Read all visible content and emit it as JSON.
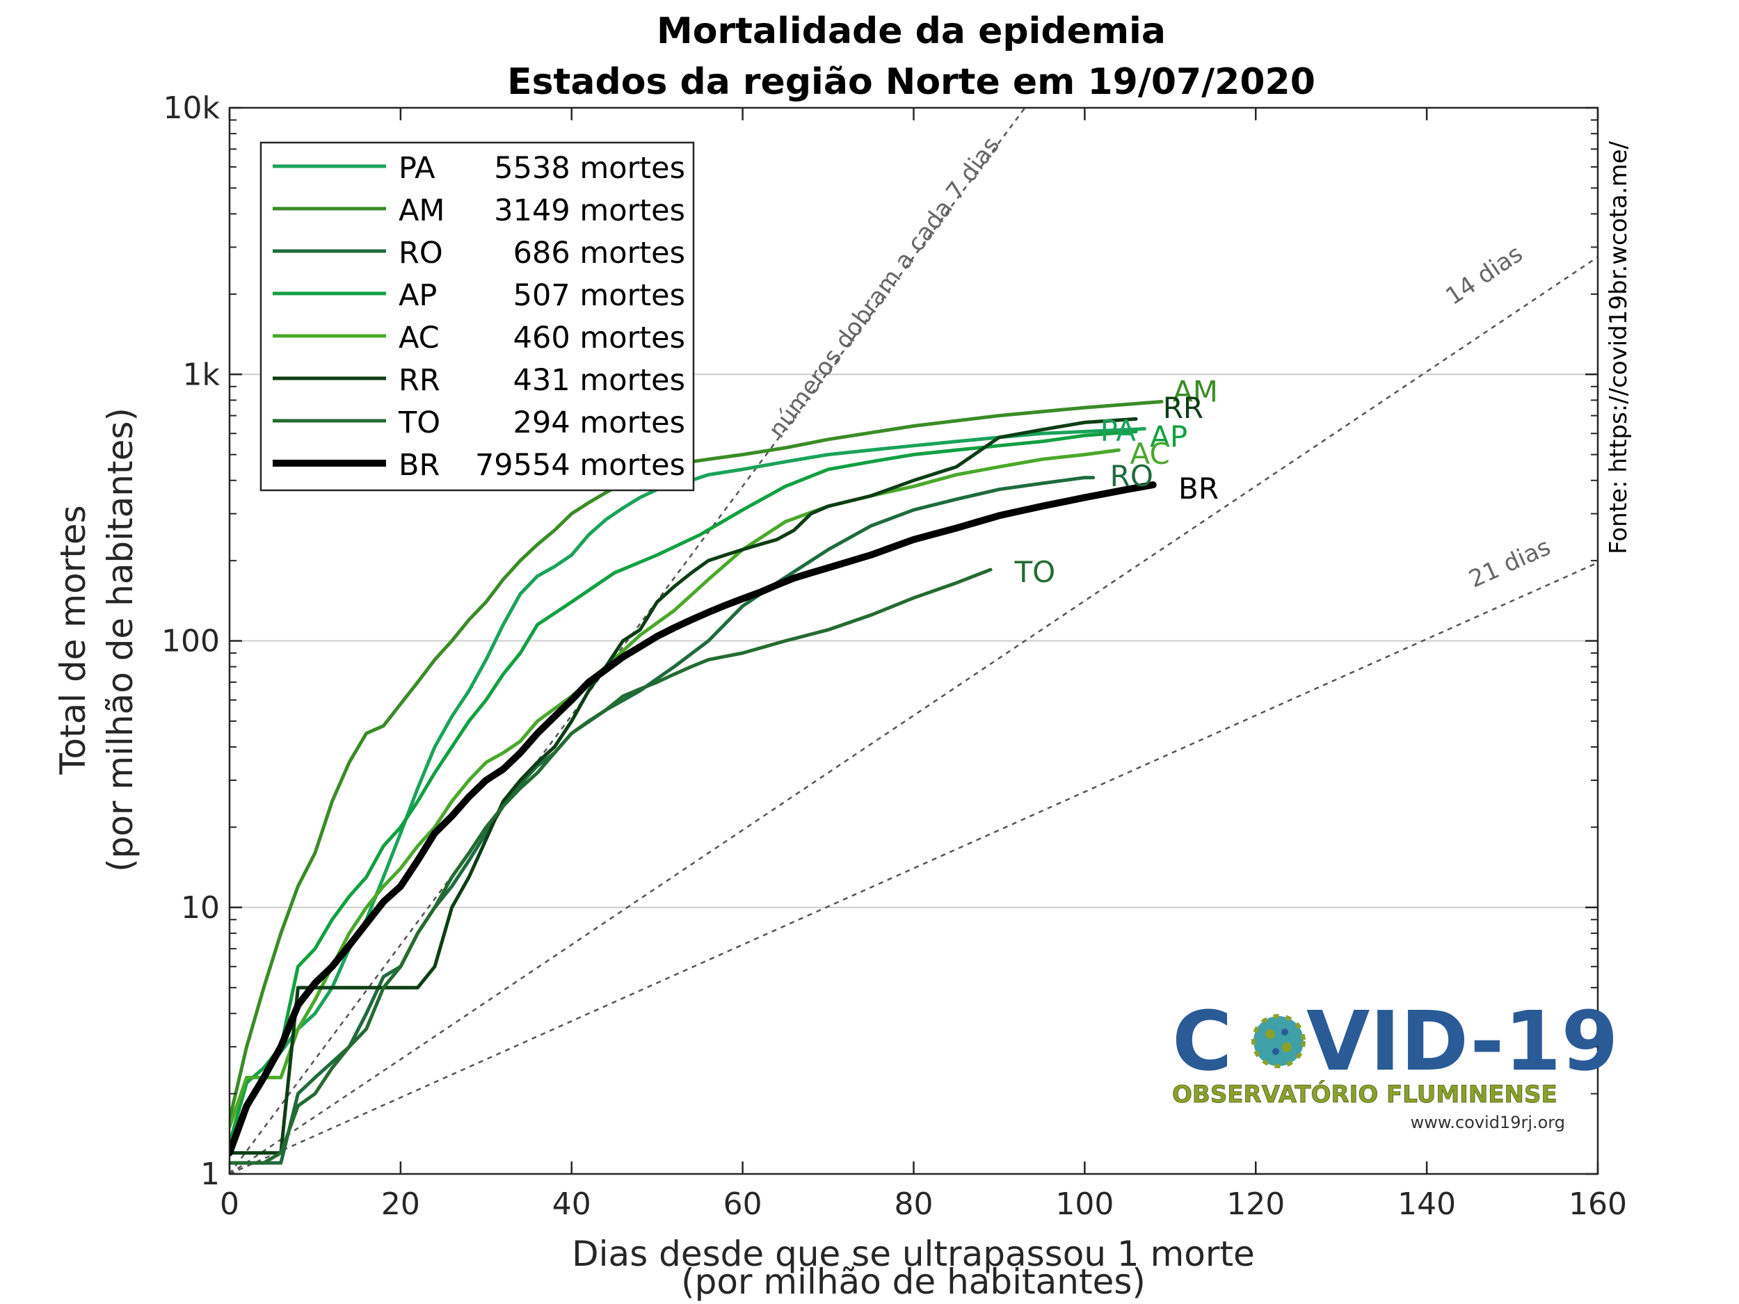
{
  "chart_data": {
    "type": "line",
    "title": [
      "Mortalidade da epidemia",
      "Estados da região Norte em 19/07/2020"
    ],
    "xlabel": [
      "Dias desde que se ultrapassou 1 morte",
      "(por milhão de habitantes)"
    ],
    "ylabel": [
      "Total de mortes",
      "(por milhão de habitantes)"
    ],
    "xlim": [
      0,
      160
    ],
    "ylim": [
      1,
      10000
    ],
    "y_scale": "log",
    "x_ticks": [
      0,
      20,
      40,
      60,
      80,
      100,
      120,
      140,
      160
    ],
    "y_ticks": [
      {
        "value": 1,
        "label": "1"
      },
      {
        "value": 10,
        "label": "10"
      },
      {
        "value": 100,
        "label": "100"
      },
      {
        "value": 1000,
        "label": "1k"
      },
      {
        "value": 10000,
        "label": "10k"
      }
    ],
    "grid": "horizontal",
    "legend_position": "top-left",
    "source": "Fonte: https://covid19br.wcota.me/",
    "reference_lines": [
      {
        "label": "números dobram a cada 7 dias",
        "doubling_days": 7
      },
      {
        "label": "14 dias",
        "doubling_days": 14
      },
      {
        "label": "21 dias",
        "doubling_days": 21
      }
    ],
    "series": [
      {
        "name": "PA",
        "deaths": 5538,
        "legend": "5538 mortes",
        "color": "#1aa35a",
        "width": 5,
        "x": [
          0,
          2,
          5,
          8,
          10,
          12,
          14,
          16,
          18,
          20,
          22,
          24,
          26,
          28,
          30,
          32,
          34,
          36,
          38,
          40,
          42,
          44,
          46,
          48,
          50,
          52,
          54,
          56,
          60,
          65,
          70,
          75,
          80,
          85,
          90,
          95,
          100,
          105,
          107
        ],
        "y": [
          1.2,
          1.8,
          2.6,
          3.5,
          4,
          5,
          7,
          9,
          13,
          19,
          28,
          40,
          52,
          65,
          85,
          115,
          150,
          175,
          190,
          210,
          250,
          285,
          315,
          345,
          370,
          385,
          400,
          420,
          440,
          470,
          500,
          520,
          540,
          560,
          580,
          600,
          610,
          620,
          625
        ]
      },
      {
        "name": "AM",
        "deaths": 3149,
        "legend": "3149 mortes",
        "color": "#3a8c26",
        "width": 5,
        "x": [
          0,
          2,
          4,
          6,
          8,
          10,
          12,
          14,
          16,
          18,
          20,
          22,
          24,
          26,
          28,
          30,
          32,
          34,
          36,
          38,
          40,
          42,
          44,
          46,
          48,
          50,
          52,
          54,
          56,
          60,
          65,
          70,
          80,
          90,
          100,
          109
        ],
        "y": [
          1.6,
          3,
          5,
          8,
          12,
          16,
          25,
          35,
          45,
          48,
          58,
          70,
          85,
          100,
          120,
          140,
          170,
          200,
          230,
          260,
          300,
          330,
          360,
          390,
          410,
          430,
          450,
          470,
          480,
          500,
          530,
          570,
          640,
          700,
          750,
          790
        ]
      },
      {
        "name": "RO",
        "deaths": 686,
        "legend": "686 mortes",
        "color": "#1f6b3e",
        "width": 5,
        "x": [
          0,
          6,
          8,
          10,
          14,
          16,
          18,
          20,
          22,
          24,
          26,
          28,
          30,
          32,
          34,
          36,
          38,
          40,
          44,
          48,
          52,
          56,
          60,
          64,
          70,
          75,
          80,
          85,
          90,
          95,
          100,
          101
        ],
        "y": [
          1.1,
          1.1,
          2,
          2.3,
          3,
          4,
          5.5,
          6,
          8,
          10,
          12,
          15,
          19,
          24,
          29,
          34,
          38,
          45,
          55,
          65,
          80,
          100,
          135,
          165,
          220,
          270,
          310,
          340,
          370,
          390,
          410,
          410
        ]
      },
      {
        "name": "AP",
        "deaths": 507,
        "legend": "507 mortes",
        "color": "#12a040",
        "width": 5,
        "x": [
          0,
          2,
          4,
          6,
          8,
          10,
          12,
          14,
          16,
          18,
          20,
          22,
          24,
          26,
          28,
          30,
          32,
          34,
          36,
          40,
          45,
          50,
          55,
          60,
          65,
          70,
          75,
          80,
          85,
          90,
          95,
          100,
          106
        ],
        "y": [
          1.3,
          2.2,
          2.5,
          3,
          6,
          7,
          9,
          11,
          13,
          17,
          20,
          25,
          32,
          40,
          50,
          60,
          75,
          90,
          115,
          140,
          180,
          210,
          250,
          310,
          380,
          440,
          470,
          500,
          520,
          540,
          560,
          590,
          610
        ]
      },
      {
        "name": "AC",
        "deaths": 460,
        "legend": "460 mortes",
        "color": "#4aa82a",
        "width": 5,
        "x": [
          0,
          2,
          4,
          6,
          8,
          10,
          12,
          14,
          16,
          18,
          20,
          22,
          24,
          26,
          28,
          30,
          32,
          34,
          36,
          40,
          44,
          48,
          52,
          56,
          60,
          65,
          70,
          75,
          80,
          85,
          90,
          95,
          100,
          104
        ],
        "y": [
          1.5,
          2.3,
          2.3,
          2.3,
          3.5,
          4.5,
          6,
          8,
          10,
          12,
          14,
          17,
          20,
          25,
          30,
          35,
          38,
          42,
          50,
          62,
          80,
          105,
          130,
          170,
          220,
          280,
          320,
          350,
          380,
          420,
          450,
          480,
          500,
          520
        ]
      },
      {
        "name": "RR",
        "deaths": 431,
        "legend": "431 mortes",
        "color": "#0d3d14",
        "width": 5,
        "x": [
          0,
          6,
          8,
          10,
          12,
          14,
          16,
          18,
          20,
          22,
          24,
          26,
          28,
          30,
          32,
          34,
          36,
          38,
          40,
          42,
          44,
          46,
          48,
          50,
          52,
          54,
          56,
          58,
          60,
          62,
          64,
          66,
          68,
          70,
          75,
          80,
          85,
          90,
          95,
          100,
          106
        ],
        "y": [
          1.2,
          1.2,
          5,
          5,
          5,
          5,
          5,
          5,
          5,
          5,
          6,
          10,
          13,
          18,
          25,
          30,
          35,
          40,
          50,
          65,
          80,
          100,
          110,
          140,
          160,
          180,
          200,
          210,
          220,
          230,
          240,
          260,
          300,
          320,
          350,
          400,
          450,
          580,
          620,
          660,
          680
        ]
      },
      {
        "name": "TO",
        "deaths": 294,
        "legend": "294 mortes",
        "color": "#246b32",
        "width": 5,
        "x": [
          0,
          4,
          6,
          8,
          10,
          12,
          14,
          16,
          18,
          20,
          22,
          24,
          26,
          28,
          30,
          32,
          34,
          36,
          38,
          40,
          42,
          44,
          46,
          48,
          50,
          52,
          54,
          56,
          60,
          65,
          70,
          75,
          80,
          85,
          89
        ],
        "y": [
          1.1,
          1.1,
          1.2,
          1.8,
          2,
          2.5,
          3,
          3.5,
          5,
          6,
          8,
          10,
          13,
          16,
          20,
          24,
          28,
          32,
          38,
          45,
          50,
          55,
          62,
          66,
          70,
          75,
          80,
          85,
          90,
          100,
          110,
          125,
          145,
          165,
          185
        ]
      },
      {
        "name": "BR",
        "deaths": 79554,
        "legend": "79554 mortes",
        "color": "#000000",
        "width": 10,
        "x": [
          0,
          2,
          4,
          6,
          8,
          10,
          12,
          14,
          16,
          18,
          20,
          22,
          24,
          26,
          28,
          30,
          32,
          34,
          36,
          38,
          40,
          42,
          44,
          46,
          48,
          50,
          52,
          54,
          56,
          58,
          60,
          62,
          64,
          66,
          68,
          70,
          75,
          80,
          85,
          90,
          95,
          100,
          105,
          108
        ],
        "y": [
          1.2,
          1.8,
          2.3,
          3,
          4.3,
          5.2,
          6,
          7.2,
          8.7,
          10.5,
          12,
          15,
          19,
          22,
          26,
          30,
          33,
          38,
          45,
          52,
          60,
          70,
          78,
          87,
          95,
          104,
          112,
          120,
          128,
          136,
          144,
          152,
          162,
          172,
          180,
          188,
          210,
          240,
          265,
          295,
          320,
          345,
          370,
          385
        ]
      }
    ],
    "end_labels": [
      {
        "name": "AM",
        "x": 109,
        "y": 790
      },
      {
        "name": "RR",
        "x": 108,
        "y": 720
      },
      {
        "name": "PA",
        "x": 101,
        "y": 650
      },
      {
        "name": "AP",
        "x": 106,
        "y": 610
      },
      {
        "name": "AC",
        "x": 104,
        "y": 520
      },
      {
        "name": "RO",
        "x": 101,
        "y": 400
      },
      {
        "name": "BR",
        "x": 109,
        "y": 385
      },
      {
        "name": "TO",
        "x": 90,
        "y": 185
      }
    ]
  },
  "logo": {
    "title_left": "C",
    "title_right": "VID-19",
    "subtitle": "OBSERVATÓRIO FLUMINENSE",
    "url": "www.covid19rj.org",
    "colors": {
      "primary": "#2a5b96",
      "secondary": "#8aa12c",
      "virus": "#3fa0a8"
    }
  }
}
